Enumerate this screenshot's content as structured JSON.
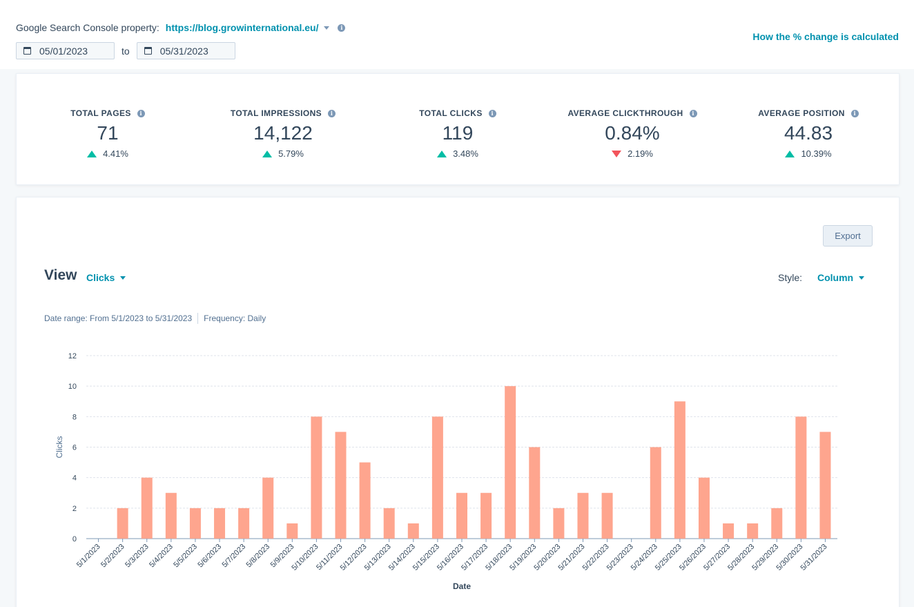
{
  "header": {
    "property_label": "Google Search Console property:",
    "property_value": "https://blog.growinternational.eu/",
    "date_from": "05/01/2023",
    "date_to_label": "to",
    "date_to": "05/31/2023",
    "calc_link": "How the % change is calculated"
  },
  "stats": [
    {
      "label": "TOTAL PAGES",
      "value": "71",
      "change": "4.41%",
      "direction": "up"
    },
    {
      "label": "TOTAL IMPRESSIONS",
      "value": "14,122",
      "change": "5.79%",
      "direction": "up"
    },
    {
      "label": "TOTAL CLICKS",
      "value": "119",
      "change": "3.48%",
      "direction": "up"
    },
    {
      "label": "AVERAGE CLICKTHROUGH",
      "value": "0.84%",
      "change": "2.19%",
      "direction": "down"
    },
    {
      "label": "AVERAGE POSITION",
      "value": "44.83",
      "change": "10.39%",
      "direction": "up"
    }
  ],
  "chart_panel": {
    "export_label": "Export",
    "view_label": "View",
    "view_value": "Clicks",
    "style_label": "Style:",
    "style_value": "Column",
    "date_range_text": "Date range: From 5/1/2023 to 5/31/2023",
    "frequency_text": "Frequency: Daily"
  },
  "colors": {
    "accent": "#0091ae",
    "bar": "#fea58e",
    "up": "#00bda5",
    "down": "#f2545b"
  },
  "chart_data": {
    "type": "bar",
    "xlabel": "Date",
    "ylabel": "Clicks",
    "ylim": [
      0,
      12
    ],
    "yticks": [
      0,
      2,
      4,
      6,
      8,
      10,
      12
    ],
    "grid": true,
    "categories": [
      "5/1/2023",
      "5/2/2023",
      "5/3/2023",
      "5/4/2023",
      "5/5/2023",
      "5/6/2023",
      "5/7/2023",
      "5/8/2023",
      "5/9/2023",
      "5/10/2023",
      "5/11/2023",
      "5/12/2023",
      "5/13/2023",
      "5/14/2023",
      "5/15/2023",
      "5/16/2023",
      "5/17/2023",
      "5/18/2023",
      "5/19/2023",
      "5/20/2023",
      "5/21/2023",
      "5/22/2023",
      "5/23/2023",
      "5/24/2023",
      "5/25/2023",
      "5/26/2023",
      "5/27/2023",
      "5/28/2023",
      "5/29/2023",
      "5/30/2023",
      "5/31/2023"
    ],
    "values": [
      0,
      2,
      4,
      3,
      2,
      2,
      2,
      4,
      1,
      8,
      7,
      5,
      2,
      1,
      8,
      3,
      3,
      10,
      6,
      2,
      3,
      3,
      0,
      6,
      9,
      4,
      1,
      1,
      2,
      8,
      7
    ]
  }
}
